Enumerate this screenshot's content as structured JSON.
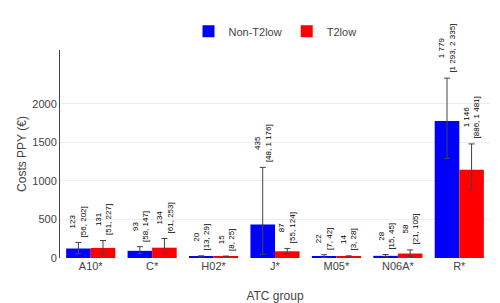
{
  "chart_data": {
    "type": "bar",
    "categories": [
      "A10*",
      "C*",
      "H02*",
      "J*",
      "M05*",
      "N06A*",
      "R*"
    ],
    "series": [
      {
        "name": "Non-T2low",
        "color": "#0000FF",
        "values": [
          123,
          93,
          20,
          435,
          22,
          28,
          1779
        ],
        "value_labels": [
          "123",
          "93",
          "20",
          "435",
          "22",
          "28",
          "1 779"
        ],
        "ci_low": [
          56,
          58,
          13,
          48,
          7,
          15,
          1293
        ],
        "ci_high": [
          202,
          147,
          29,
          1176,
          42,
          45,
          2335
        ],
        "ci_labels": [
          "[56, 202]",
          "[58, 147]",
          "[13, 29]",
          "[48, 1 176]",
          "[7, 42]",
          "[15, 45]",
          "[1 293, 2 335]"
        ]
      },
      {
        "name": "T2low",
        "color": "#FF0000",
        "values": [
          131,
          134,
          15,
          87,
          14,
          58,
          1146
        ],
        "value_labels": [
          "131",
          "134",
          "15",
          "87",
          "14",
          "58",
          "1 146"
        ],
        "ci_low": [
          51,
          61,
          8,
          55,
          3,
          21,
          886
        ],
        "ci_high": [
          227,
          253,
          25,
          124,
          28,
          105,
          1481
        ],
        "ci_labels": [
          "[51, 227]",
          "[61, 253]",
          "[8, 25]",
          "[55, 124]",
          "[3, 28]",
          "[21, 105]",
          "[886, 1 481]"
        ]
      }
    ],
    "xlabel": "ATC group",
    "ylabel": "Costs PPY (€)",
    "ylim": [
      0,
      2700
    ],
    "yticks": [
      0,
      500,
      1000,
      1500,
      2000
    ],
    "grid": true,
    "legend": "top",
    "data_labels": true
  }
}
